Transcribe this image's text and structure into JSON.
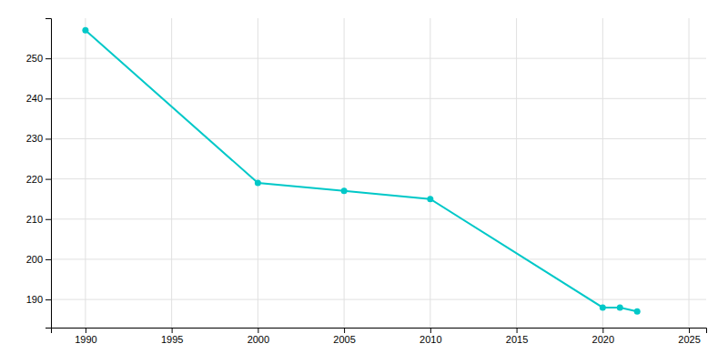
{
  "chart_data": {
    "type": "line",
    "x": [
      1990,
      2000,
      2005,
      2010,
      2020,
      2021,
      2022
    ],
    "values": [
      257,
      219,
      217,
      215,
      188,
      188,
      187
    ],
    "color": "#00C8C8",
    "marker": "circle",
    "xlim": [
      1988,
      2026
    ],
    "ylim": [
      183,
      260
    ],
    "xticks": [
      1990,
      1995,
      2000,
      2005,
      2010,
      2015,
      2020,
      2025
    ],
    "yticks": [
      190,
      200,
      210,
      220,
      230,
      240,
      250
    ],
    "grid": true
  }
}
